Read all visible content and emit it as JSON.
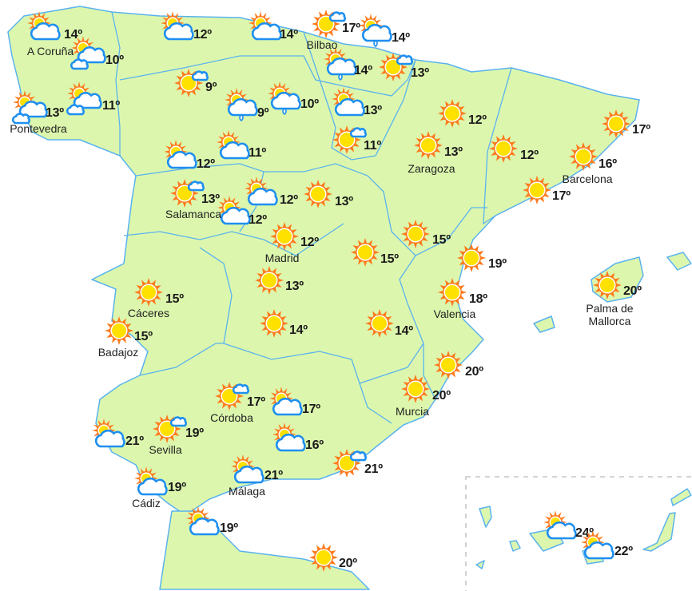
{
  "colors": {
    "land": "#dcf7ad",
    "border": "#5ab2ef",
    "sun": "#ffe100",
    "rays": "#ff7a1c",
    "cloud_stroke": "#1e8ff0"
  },
  "forecasts": [
    {
      "icon": "partly-cloudy",
      "temp": "14º"
    },
    {
      "icon": "cloudy-sun",
      "temp": "10º"
    },
    {
      "icon": "cloudy-sun",
      "temp": "13º"
    },
    {
      "icon": "cloudy-sun",
      "temp": "11º"
    },
    {
      "icon": "partly-cloudy",
      "temp": "12º"
    },
    {
      "icon": "partly-cloudy",
      "temp": "14º"
    },
    {
      "icon": "sun-small-cloud",
      "temp": "17º"
    },
    {
      "icon": "rain-sun",
      "temp": "14º"
    },
    {
      "icon": "rain-sun",
      "temp": "14º"
    },
    {
      "icon": "sun-small-cloud",
      "temp": "13º"
    },
    {
      "icon": "sun-small-cloud",
      "temp": "9º"
    },
    {
      "icon": "rain-sun",
      "temp": "9º"
    },
    {
      "icon": "rain-sun",
      "temp": "10º"
    },
    {
      "icon": "partly-cloudy",
      "temp": "13º"
    },
    {
      "icon": "sun",
      "temp": "12º"
    },
    {
      "icon": "sun-small-cloud",
      "temp": "11º"
    },
    {
      "icon": "partly-cloudy",
      "temp": "12º"
    },
    {
      "icon": "partly-cloudy",
      "temp": "11º"
    },
    {
      "icon": "sun",
      "temp": "13º"
    },
    {
      "icon": "sun",
      "temp": "12º"
    },
    {
      "icon": "sun",
      "temp": "17º"
    },
    {
      "icon": "sun",
      "temp": "16º"
    },
    {
      "icon": "sun",
      "temp": "17º"
    },
    {
      "icon": "sun-small-cloud",
      "temp": "13º"
    },
    {
      "icon": "partly-cloudy",
      "temp": "12º"
    },
    {
      "icon": "partly-cloudy",
      "temp": "12º"
    },
    {
      "icon": "sun",
      "temp": "13º"
    },
    {
      "icon": "sun",
      "temp": "12º"
    },
    {
      "icon": "sun",
      "temp": "15º"
    },
    {
      "icon": "sun",
      "temp": "15º"
    },
    {
      "icon": "sun",
      "temp": "19º"
    },
    {
      "icon": "sun",
      "temp": "13º"
    },
    {
      "icon": "sun",
      "temp": "15º"
    },
    {
      "icon": "sun",
      "temp": "18º"
    },
    {
      "icon": "sun",
      "temp": "20º"
    },
    {
      "icon": "sun",
      "temp": "15º"
    },
    {
      "icon": "sun",
      "temp": "14º"
    },
    {
      "icon": "sun",
      "temp": "14º"
    },
    {
      "icon": "sun",
      "temp": "20º"
    },
    {
      "icon": "sun",
      "temp": "20º"
    },
    {
      "icon": "sun-small-cloud",
      "temp": "17º"
    },
    {
      "icon": "partly-cloudy",
      "temp": "17º"
    },
    {
      "icon": "sun-small-cloud",
      "temp": "19º"
    },
    {
      "icon": "partly-cloudy",
      "temp": "21º"
    },
    {
      "icon": "partly-cloudy",
      "temp": "16º"
    },
    {
      "icon": "sun-small-cloud",
      "temp": "21º"
    },
    {
      "icon": "partly-cloudy",
      "temp": "21º"
    },
    {
      "icon": "partly-cloudy",
      "temp": "19º"
    },
    {
      "icon": "partly-cloudy",
      "temp": "19º"
    },
    {
      "icon": "sun",
      "temp": "20º"
    },
    {
      "icon": "partly-cloudy",
      "temp": "24º"
    },
    {
      "icon": "partly-cloudy",
      "temp": "22º"
    }
  ],
  "cities": [
    "A Coruña",
    "Pontevedra",
    "Bilbao",
    "Zaragoza",
    "Barcelona",
    "Salamanca",
    "Madrid",
    "Cáceres",
    "Valencia",
    "Palma de\nMallorca",
    "Badajoz",
    "Murcia",
    "Córdoba",
    "Sevilla",
    "Málaga",
    "Cádiz"
  ]
}
